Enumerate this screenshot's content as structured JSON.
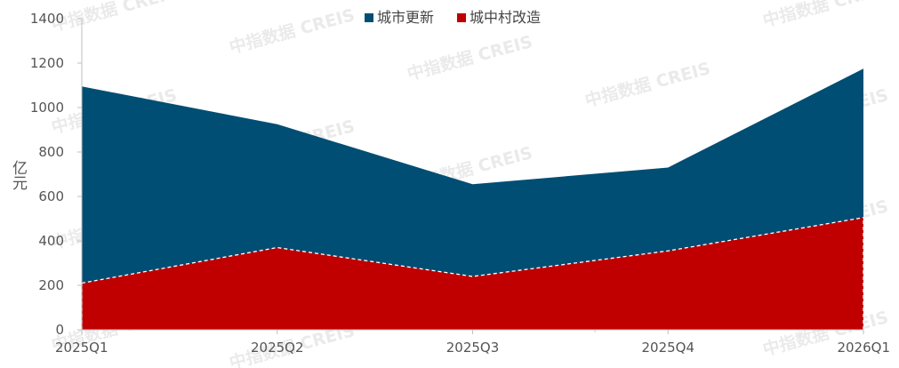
{
  "chart_data": {
    "type": "area",
    "stacked": false,
    "categories": [
      "2025Q1",
      "2025Q2",
      "2025Q3",
      "2025Q4",
      "2026Q1"
    ],
    "series": [
      {
        "name": "城市更新",
        "values": [
          1095,
          925,
          655,
          730,
          1175
        ],
        "color": "#004E73"
      },
      {
        "name": "城中村改造",
        "values": [
          210,
          370,
          240,
          355,
          505
        ],
        "color": "#C00000"
      }
    ],
    "ylabel": "亿元",
    "ylim": [
      0,
      1400
    ],
    "yticks": [
      0,
      200,
      400,
      600,
      800,
      1000,
      1200,
      1400
    ],
    "grid": false,
    "legend_position": "top-center"
  },
  "watermark": "中指数据 CREIS"
}
